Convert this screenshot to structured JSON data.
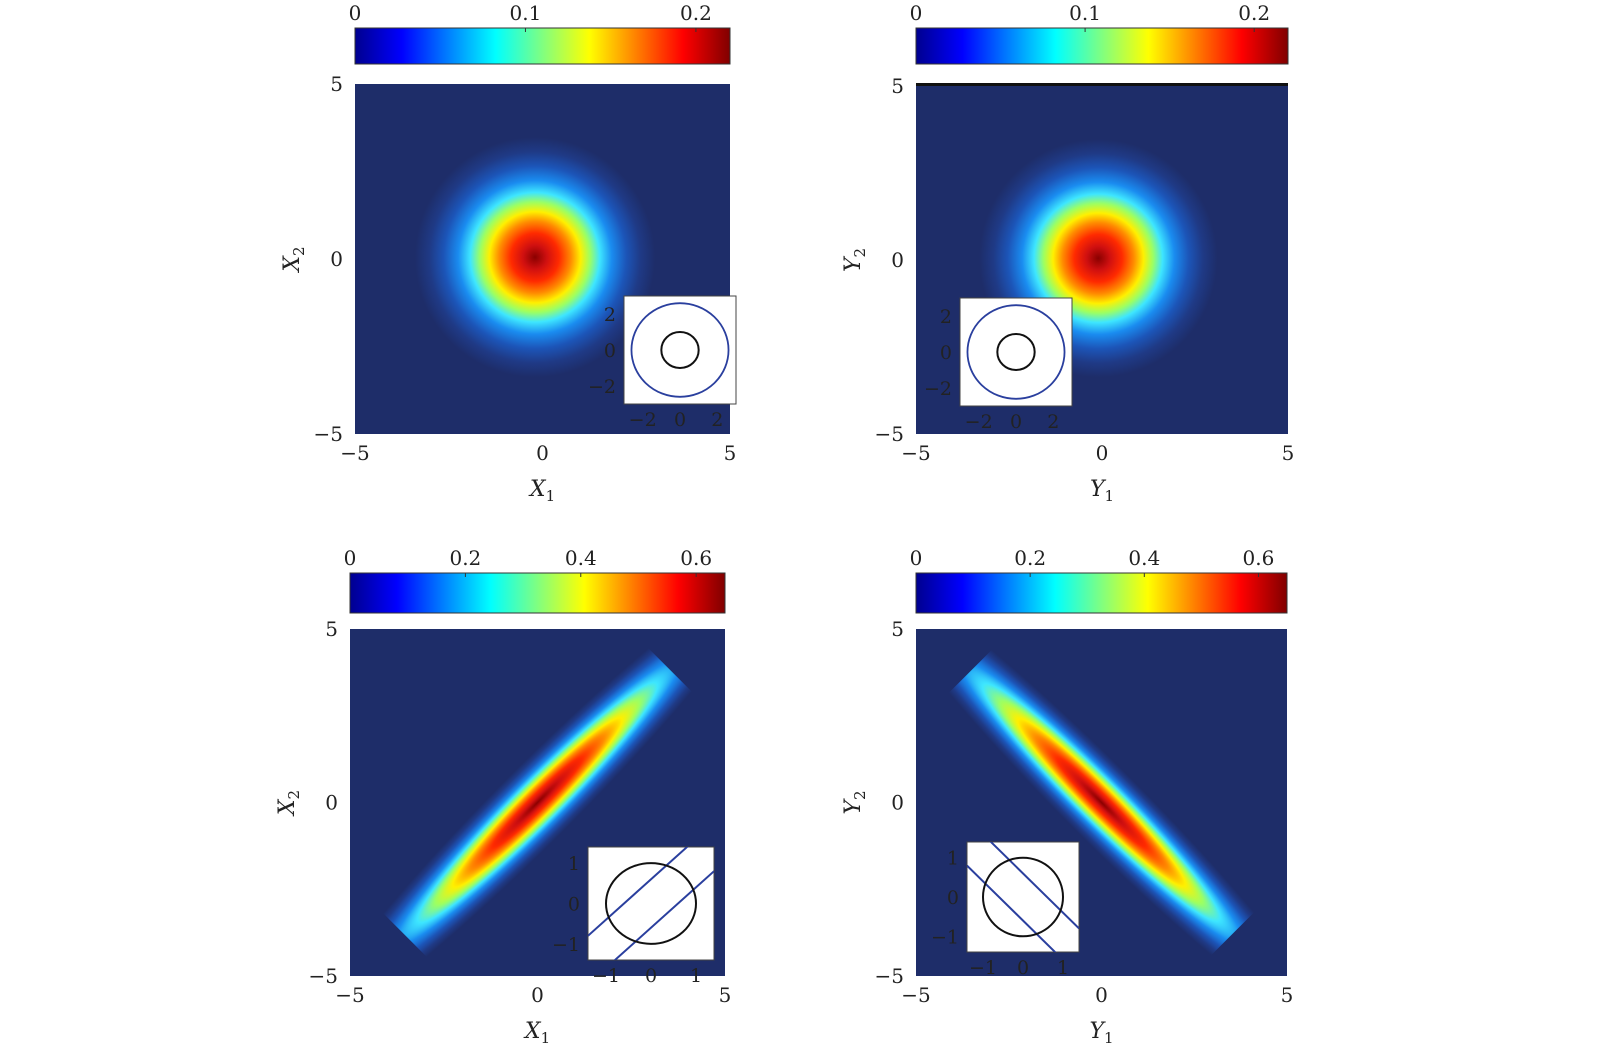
{
  "chart_data": [
    {
      "type": "heatmap",
      "panel": "top-left",
      "xlabel": "X",
      "xlabel_sub": "1",
      "ylabel": "X",
      "ylabel_sub": "2",
      "xlim": [
        -5,
        5
      ],
      "ylim": [
        -5,
        5
      ],
      "x_ticks": [
        "−5",
        "0",
        "5"
      ],
      "y_ticks": [
        "−5",
        "0",
        "5"
      ],
      "colorbar": {
        "range": [
          0,
          0.22
        ],
        "ticks": [
          "0",
          "0.1",
          "0.2"
        ],
        "tick_values": [
          0,
          0.1,
          0.2
        ]
      },
      "density": {
        "shape": "circular",
        "center": [
          -0.2,
          0.05
        ],
        "sigma_major": 1.0,
        "sigma_minor": 1.0,
        "angle_deg": 0,
        "peak": 0.21
      },
      "inset": {
        "position": "bottom-right",
        "xlim": [
          -3,
          3
        ],
        "ylim": [
          -3,
          3
        ],
        "x_ticks": [
          "−2",
          "0",
          "2"
        ],
        "y_ticks": [
          "−2",
          "0",
          "2"
        ],
        "black_circle_radius": 1.0,
        "blue_circle_radius": 2.6
      }
    },
    {
      "type": "heatmap",
      "panel": "top-right",
      "xlabel": "Y",
      "xlabel_sub": "1",
      "ylabel": "Y",
      "ylabel_sub": "2",
      "xlim": [
        -5,
        5
      ],
      "ylim": [
        -5,
        5
      ],
      "x_ticks": [
        "−5",
        "0",
        "5"
      ],
      "y_ticks": [
        "−5",
        "0",
        "5"
      ],
      "colorbar": {
        "range": [
          0,
          0.22
        ],
        "ticks": [
          "0",
          "0.1",
          "0.2"
        ],
        "tick_values": [
          0,
          0.1,
          0.2
        ]
      },
      "density": {
        "shape": "circular",
        "center": [
          -0.1,
          0.05
        ],
        "sigma_major": 1.0,
        "sigma_minor": 1.0,
        "angle_deg": 0,
        "peak": 0.21
      },
      "inset": {
        "position": "bottom-left",
        "xlim": [
          -3,
          3
        ],
        "ylim": [
          -3,
          3
        ],
        "x_ticks": [
          "−2",
          "0",
          "2"
        ],
        "y_ticks": [
          "−2",
          "0",
          "2"
        ],
        "black_circle_radius": 1.0,
        "blue_circle_radius": 2.6
      }
    },
    {
      "type": "heatmap",
      "panel": "bottom-left",
      "xlabel": "X",
      "xlabel_sub": "1",
      "ylabel": "X",
      "ylabel_sub": "2",
      "xlim": [
        -5,
        5
      ],
      "ylim": [
        -5,
        5
      ],
      "x_ticks": [
        "−5",
        "0",
        "5"
      ],
      "y_ticks": [
        "−5",
        "0",
        "5"
      ],
      "colorbar": {
        "range": [
          0,
          0.65
        ],
        "ticks": [
          "0",
          "0.2",
          "0.4",
          "0.6"
        ],
        "tick_values": [
          0,
          0.2,
          0.4,
          0.6
        ]
      },
      "density": {
        "shape": "elongated",
        "center": [
          0,
          0
        ],
        "sigma_major": 2.6,
        "sigma_minor": 0.32,
        "angle_deg": 45,
        "peak": 0.63
      },
      "inset": {
        "position": "bottom-right",
        "xlim": [
          -1.4,
          1.4
        ],
        "ylim": [
          -1.4,
          1.4
        ],
        "x_ticks": [
          "−1",
          "0",
          "1"
        ],
        "y_ticks": [
          "−1",
          "0",
          "1"
        ],
        "black_circle_radius": 1.0,
        "blue_lines_slope": 1,
        "blue_lines_offsets": [
          0.6,
          -0.6
        ]
      }
    },
    {
      "type": "heatmap",
      "panel": "bottom-right",
      "xlabel": "Y",
      "xlabel_sub": "1",
      "ylabel": "Y",
      "ylabel_sub": "2",
      "xlim": [
        -5,
        5
      ],
      "ylim": [
        -5,
        5
      ],
      "x_ticks": [
        "−5",
        "0",
        "5"
      ],
      "y_ticks": [
        "−5",
        "0",
        "5"
      ],
      "colorbar": {
        "range": [
          0,
          0.65
        ],
        "ticks": [
          "0",
          "0.2",
          "0.4",
          "0.6"
        ],
        "tick_values": [
          0,
          0.2,
          0.4,
          0.6
        ]
      },
      "density": {
        "shape": "elongated",
        "center": [
          0,
          0
        ],
        "sigma_major": 2.6,
        "sigma_minor": 0.32,
        "angle_deg": -45,
        "peak": 0.63
      },
      "inset": {
        "position": "bottom-left",
        "xlim": [
          -1.4,
          1.4
        ],
        "ylim": [
          -1.4,
          1.4
        ],
        "x_ticks": [
          "−1",
          "0",
          "1"
        ],
        "y_ticks": [
          "−1",
          "0",
          "1"
        ],
        "black_circle_radius": 1.0,
        "blue_lines_slope": -1,
        "blue_lines_offsets": [
          0.6,
          -0.6
        ]
      }
    }
  ],
  "colors": {
    "background": "#1e2d69",
    "inset_black_circle": "#111111",
    "inset_blue": "#2a3f9e",
    "colormap": [
      "#00008f",
      "#0000ff",
      "#0080ff",
      "#00ffff",
      "#80ff80",
      "#ffff00",
      "#ff8000",
      "#ff0000",
      "#800000"
    ]
  }
}
